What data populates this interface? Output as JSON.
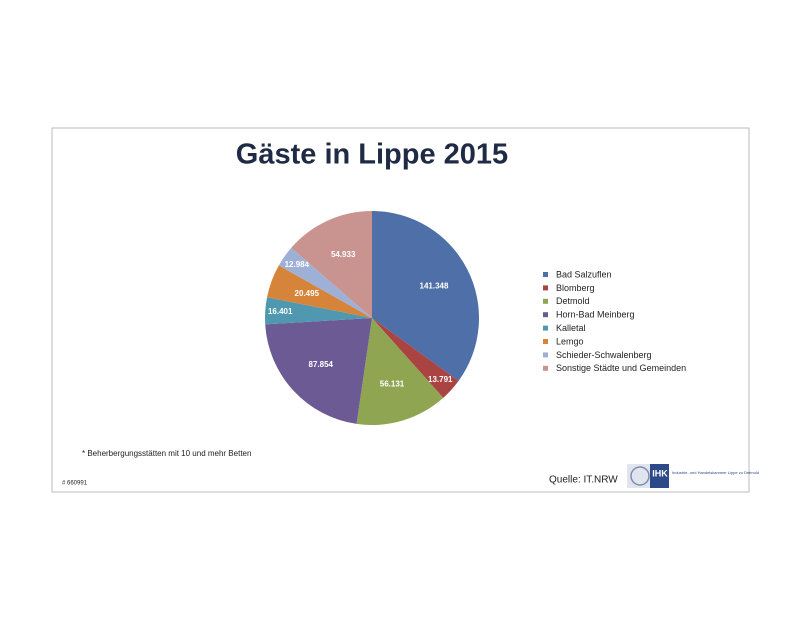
{
  "chart_data": {
    "type": "pie",
    "title": "Gäste in Lippe 2015",
    "categories": [
      "Bad Salzuflen",
      "Blomberg",
      "Detmold",
      "Horn-Bad Meinberg",
      "Kalletal",
      "Lemgo",
      "Schieder-Schwalenberg",
      "Sonstige Städte und Gemeinden"
    ],
    "values": [
      141348,
      13791,
      56131,
      87854,
      16401,
      20495,
      12984,
      54933
    ],
    "value_labels": [
      "141.348",
      "13.791",
      "56.131",
      "87.854",
      "16.401",
      "20.495",
      "12.984",
      "54.933"
    ],
    "colors": [
      "#4f6fa8",
      "#a94442",
      "#8fa552",
      "#6b5a94",
      "#4f98b0",
      "#d6843a",
      "#9fb0d6",
      "#c99390"
    ],
    "legend": "right"
  },
  "slide": {
    "footnote": "* Beherbergungsstätten mit 10 und mehr Betten",
    "code": "# 660991",
    "source": "Quelle: IT.NRW",
    "logo": {
      "mark": "IHK",
      "name": "Industrie- und Handelskammer Lippe zu Detmold"
    }
  }
}
